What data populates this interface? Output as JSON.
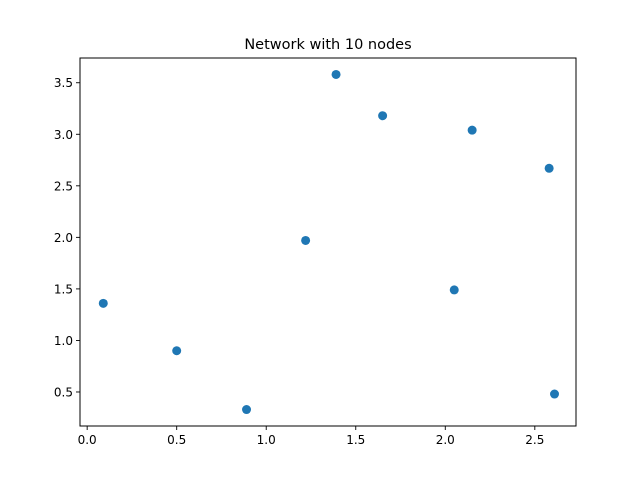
{
  "chart_data": {
    "type": "scatter",
    "title": "Network with 10 nodes",
    "xlabel": "",
    "ylabel": "",
    "xlim": [
      -0.04,
      2.73
    ],
    "ylim": [
      0.17,
      3.74
    ],
    "xticks": [
      0.0,
      0.5,
      1.0,
      1.5,
      2.0,
      2.5
    ],
    "xtick_labels": [
      "0.0",
      "0.5",
      "1.0",
      "1.5",
      "2.0",
      "2.5"
    ],
    "yticks": [
      0.5,
      1.0,
      1.5,
      2.0,
      2.5,
      3.0,
      3.5
    ],
    "ytick_labels": [
      "0.5",
      "1.0",
      "1.5",
      "2.0",
      "2.5",
      "3.0",
      "3.5"
    ],
    "grid": false,
    "marker_color": "#1f77b4",
    "points": [
      {
        "x": 0.09,
        "y": 1.36
      },
      {
        "x": 0.5,
        "y": 0.9
      },
      {
        "x": 0.89,
        "y": 0.33
      },
      {
        "x": 1.22,
        "y": 1.97
      },
      {
        "x": 1.39,
        "y": 3.58
      },
      {
        "x": 1.65,
        "y": 3.18
      },
      {
        "x": 2.05,
        "y": 1.49
      },
      {
        "x": 2.15,
        "y": 3.04
      },
      {
        "x": 2.58,
        "y": 2.67
      },
      {
        "x": 2.61,
        "y": 0.48
      }
    ]
  }
}
